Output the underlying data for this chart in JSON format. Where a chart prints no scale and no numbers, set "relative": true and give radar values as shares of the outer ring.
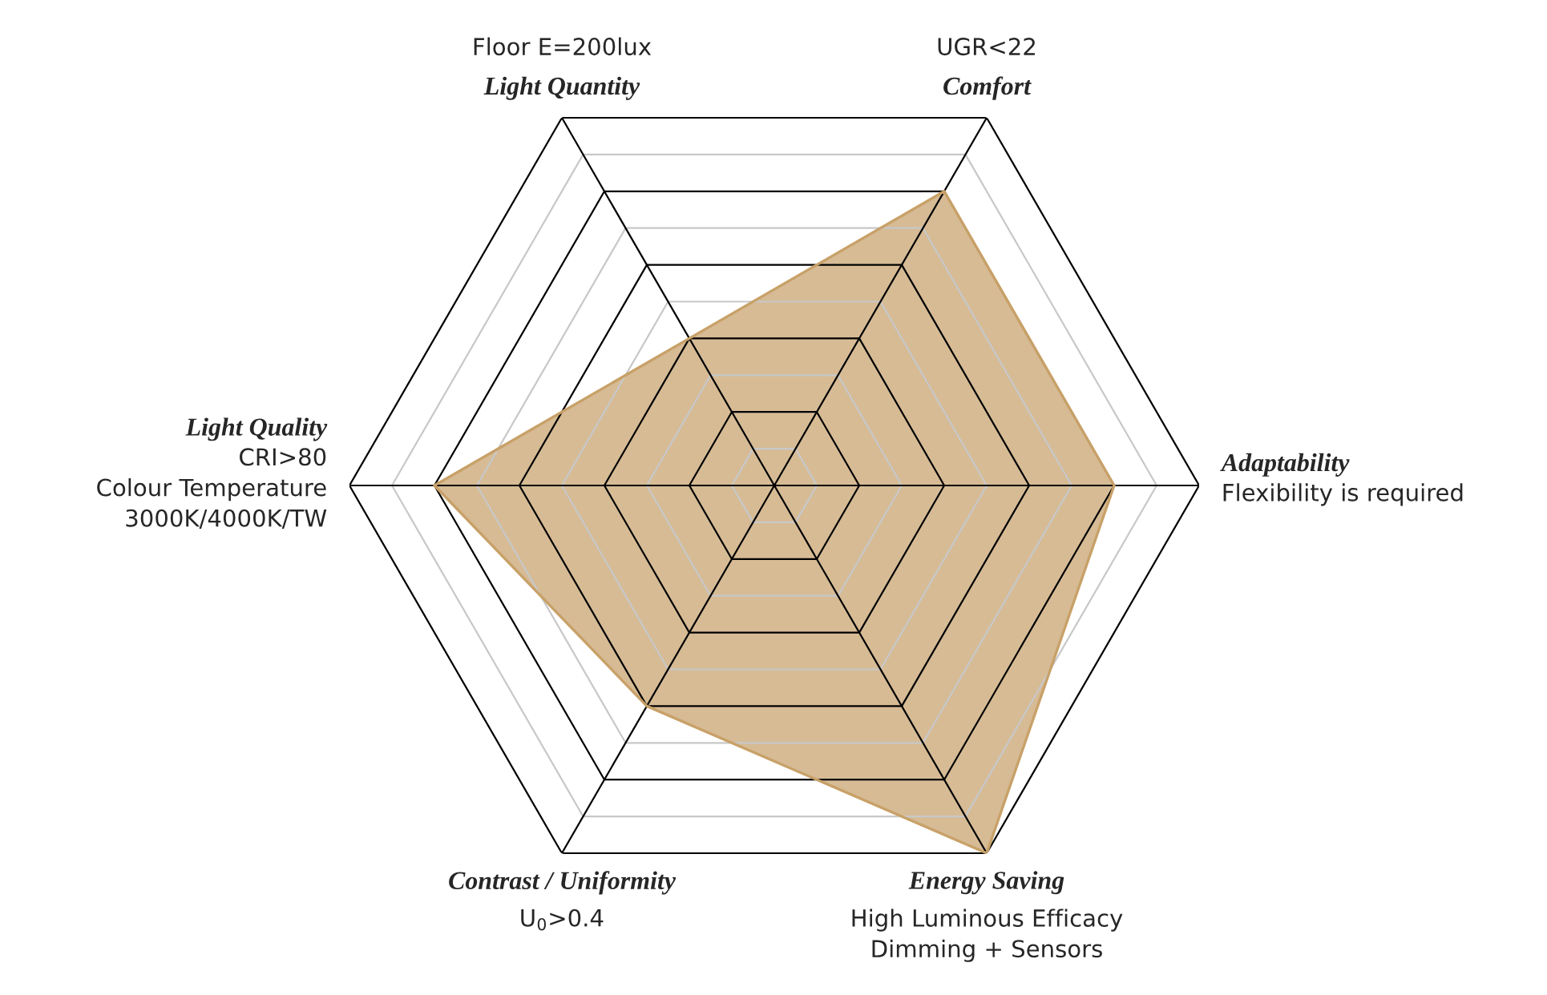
{
  "chart_data": {
    "type": "radar",
    "relative": true,
    "categories": [
      "Comfort",
      "Adaptability",
      "Energy Saving",
      "Contrast / Uniformity",
      "Light Quality",
      "Light Quantity"
    ],
    "annotations": [
      "UGR<22",
      "Flexibility is required",
      "High Luminous Efficacy\nDimming + Sensors",
      "U$_{0}$>0.4",
      "CRI>80\nColour Temperature\n3000K/4000K/TW",
      "Floor E=200lux"
    ],
    "series": [
      {
        "color": "#d6bb95",
        "values": [
          0.8,
          0.8,
          1.0,
          0.6,
          0.8,
          0.4
        ]
      }
    ],
    "grid": true
  }
}
